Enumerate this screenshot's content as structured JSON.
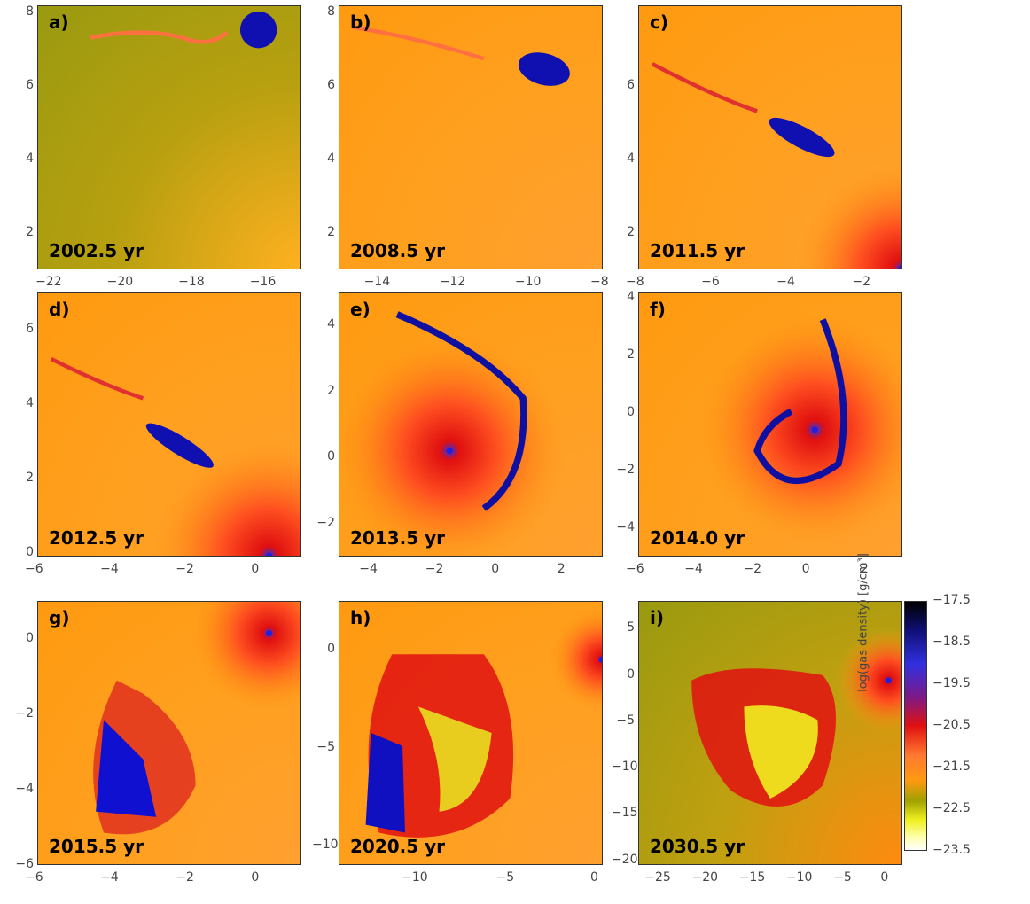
{
  "chart_data": {
    "type": "heatmap",
    "title": "",
    "colorbar": {
      "label": "log(gas density) [g/cm³]",
      "ticks": [
        "-17.5",
        "-18.5",
        "-19.5",
        "-20.5",
        "-21.5",
        "-22.5",
        "-23.5"
      ]
    },
    "panels": [
      {
        "label": "a)",
        "time": "2002.5 yr",
        "xticks": [
          "-22",
          "-20",
          "-18",
          "-16"
        ],
        "xlim": [
          -22.3,
          -14.9
        ],
        "yticks": [
          "8",
          "6",
          "4",
          "2"
        ],
        "ylim": [
          1.0,
          8.2
        ]
      },
      {
        "label": "b)",
        "time": "2008.5 yr",
        "xticks": [
          "-14",
          "-12",
          "-10",
          "-8"
        ],
        "xlim": [
          -15.0,
          -8.0
        ],
        "yticks": [
          "8",
          "6",
          "4",
          "2"
        ],
        "ylim": [
          1.0,
          8.2
        ]
      },
      {
        "label": "c)",
        "time": "2011.5 yr",
        "xticks": [
          "-8",
          "-6",
          "-4",
          "-2"
        ],
        "xlim": [
          -8.0,
          -1.0
        ],
        "yticks": [
          "6",
          "4",
          "2"
        ],
        "ylim": [
          1.0,
          8.2
        ]
      },
      {
        "label": "d)",
        "time": "2012.5 yr",
        "xticks": [
          "-6",
          "-4",
          "-2",
          "0"
        ],
        "xlim": [
          -6.0,
          1.0
        ],
        "yticks": [
          "6",
          "4",
          "2",
          "0"
        ],
        "ylim": [
          -0.1,
          7.0
        ]
      },
      {
        "label": "e)",
        "time": "2013.5 yr",
        "xticks": [
          "-4",
          "-2",
          "0",
          "2"
        ],
        "xlim": [
          -5.0,
          3.0
        ],
        "yticks": [
          "4",
          "2",
          "0",
          "-2"
        ],
        "ylim": [
          -3.0,
          5.0
        ]
      },
      {
        "label": "f)",
        "time": "2014.0 yr",
        "xticks": [
          "-6",
          "-4",
          "-2",
          "0",
          "2"
        ],
        "xlim": [
          -6.0,
          3.0
        ],
        "yticks": [
          "4",
          "2",
          "0",
          "-2",
          "-4"
        ],
        "ylim": [
          -5.0,
          4.2
        ]
      },
      {
        "label": "g)",
        "time": "2015.5 yr",
        "xticks": [
          "-6",
          "-4",
          "-2",
          "0"
        ],
        "xlim": [
          -6.0,
          1.0
        ],
        "yticks": [
          "0",
          "-2",
          "-4",
          "-6"
        ],
        "ylim": [
          -6.0,
          1.0
        ]
      },
      {
        "label": "h)",
        "time": "2020.5 yr",
        "xticks": [
          "-10",
          "-5",
          "0"
        ],
        "xlim": [
          -14.0,
          0.0
        ],
        "yticks": [
          "0",
          "-5",
          "-10"
        ],
        "ylim": [
          -11.0,
          2.5
        ]
      },
      {
        "label": "i)",
        "time": "2030.5 yr",
        "xticks": [
          "-25",
          "-20",
          "-15",
          "-10",
          "-5",
          "0"
        ],
        "xlim": [
          -27.0,
          1.0
        ],
        "yticks": [
          "5",
          "0",
          "-5",
          "-10",
          "-15",
          "-20"
        ],
        "ylim": [
          -20.5,
          8.0
        ]
      }
    ]
  },
  "colors": {
    "background_green": "#9a9a10",
    "background_orange": "#ff9a10",
    "core_blue": "#1010c0",
    "red": "#e01010",
    "yellow": "#f0f020",
    "orbit_dots": "#ffffff"
  }
}
